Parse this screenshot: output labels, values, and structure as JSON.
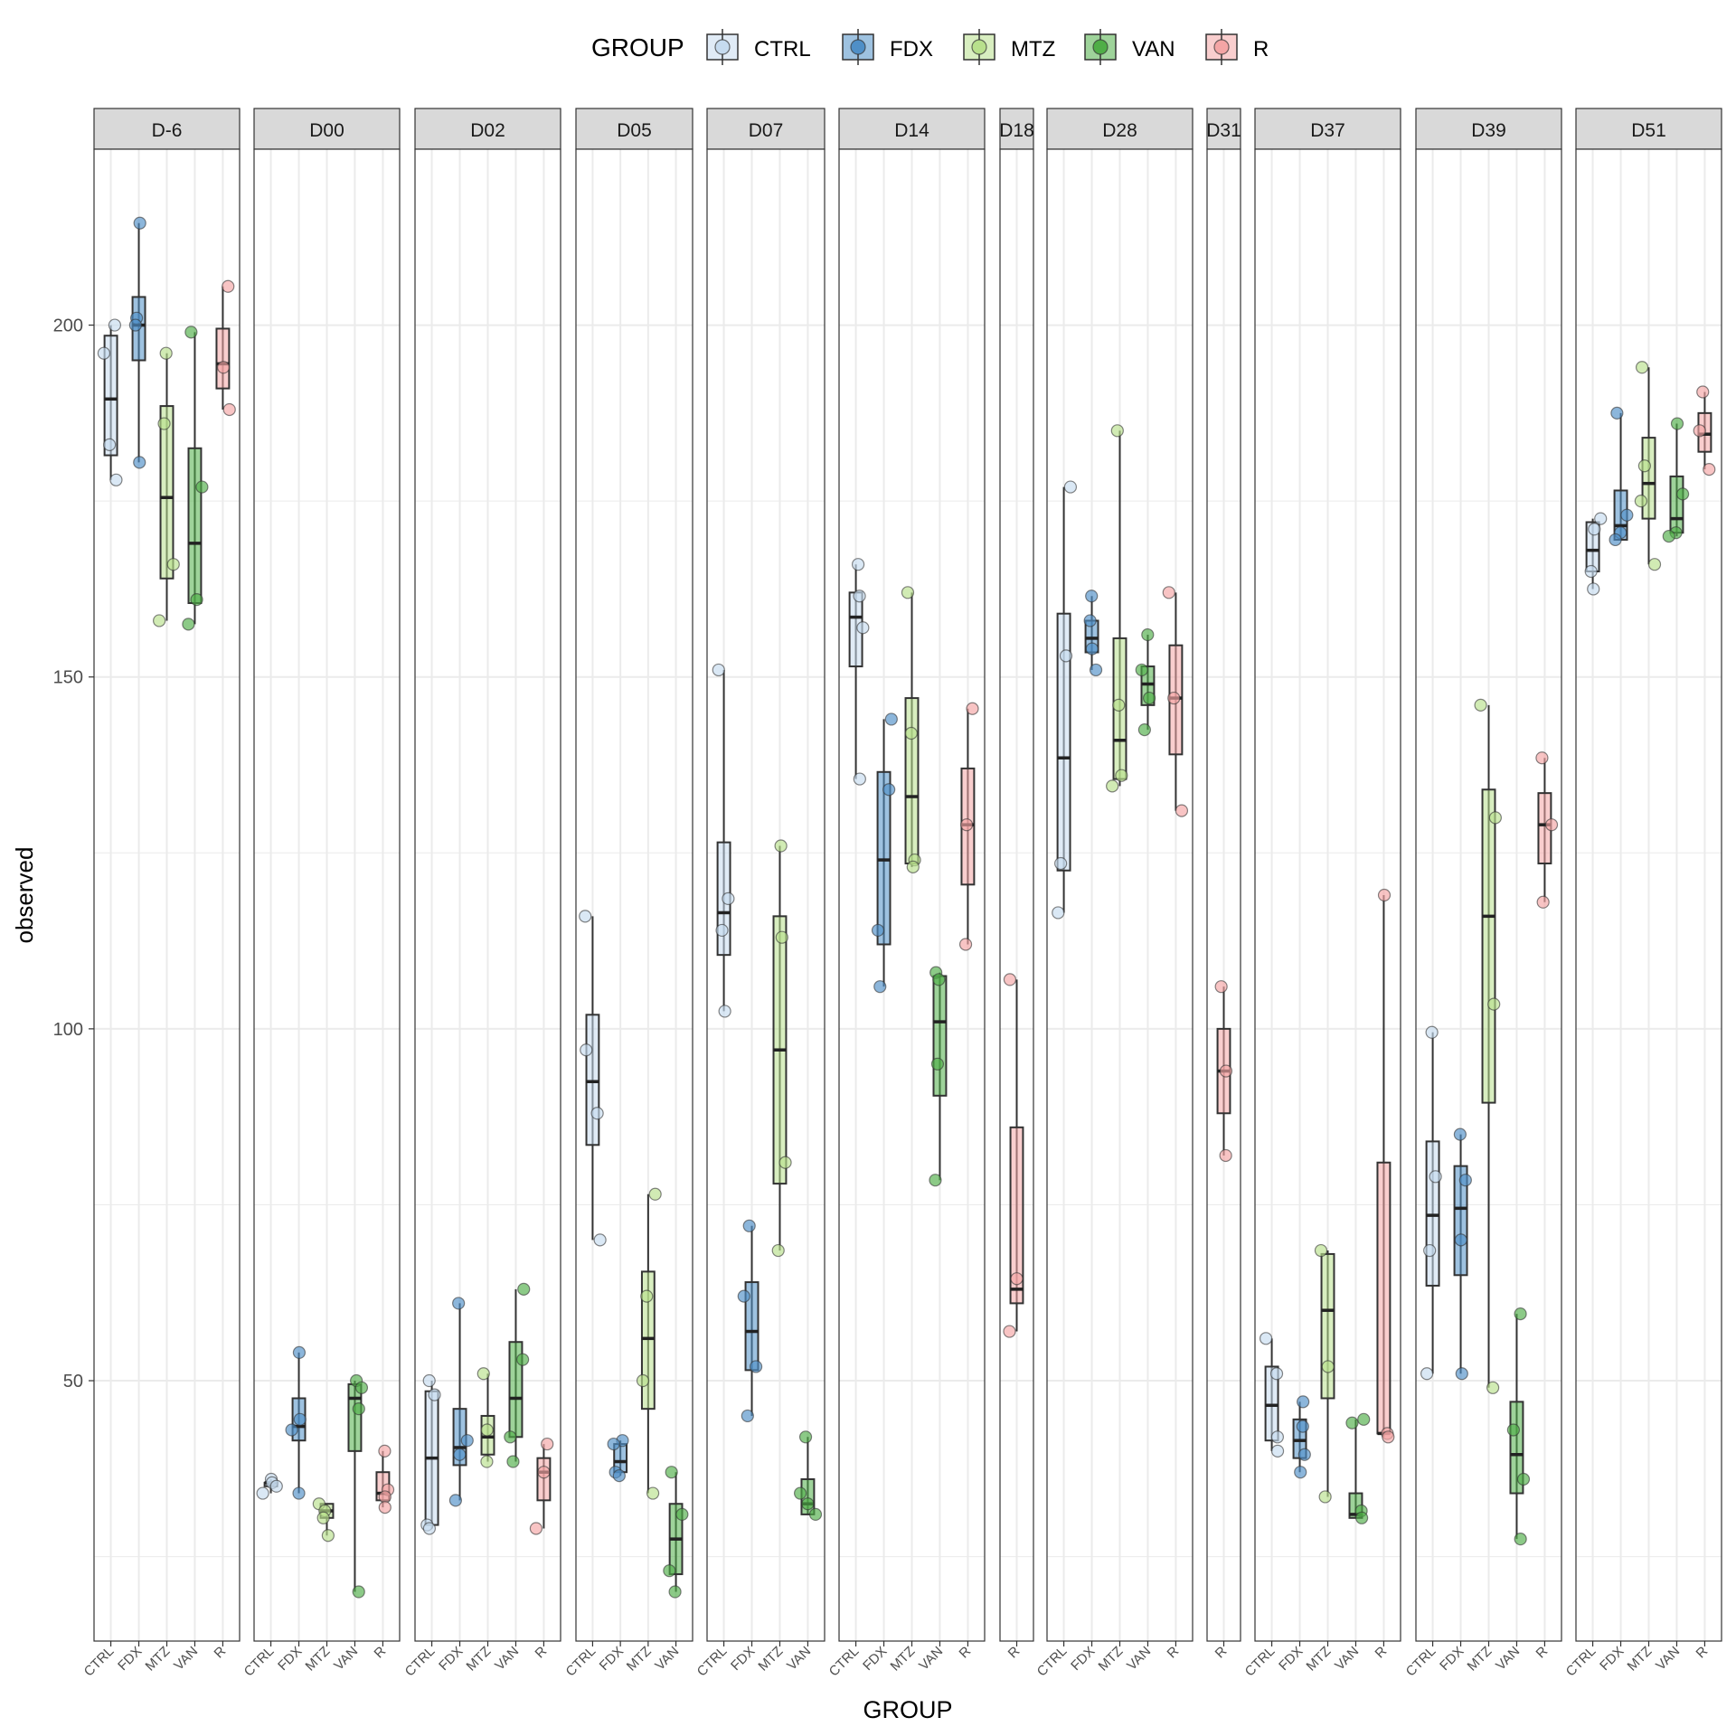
{
  "chart_data": {
    "type": "box",
    "legend": {
      "title": "GROUP",
      "position": "top",
      "items": [
        {
          "name": "CTRL",
          "color": "#c6dbef"
        },
        {
          "name": "FDX",
          "color": "#4f8fc7"
        },
        {
          "name": "MTZ",
          "color": "#b8e08c"
        },
        {
          "name": "VAN",
          "color": "#4fae47"
        },
        {
          "name": "R",
          "color": "#f4a5a5"
        }
      ]
    },
    "xlabel": "GROUP",
    "ylabel": "observed",
    "ylim": [
      13,
      225
    ],
    "yticks": [
      50,
      100,
      150,
      200
    ],
    "grid": true,
    "facets": [
      {
        "label": "D-6",
        "groups": [
          {
            "name": "CTRL",
            "q1": 181.5,
            "median": 189.5,
            "q3": 198.5,
            "points": [
              200,
              196,
              183,
              178
            ]
          },
          {
            "name": "FDX",
            "q1": 195,
            "median": 200,
            "q3": 204,
            "points": [
              214.5,
              201,
              200,
              180.5
            ]
          },
          {
            "name": "MTZ",
            "q1": 164,
            "median": 175.5,
            "q3": 188.5,
            "points": [
              196,
              186,
              166,
              158
            ]
          },
          {
            "name": "VAN",
            "q1": 160.5,
            "median": 169,
            "q3": 182.5,
            "points": [
              199,
              177,
              161,
              157.5
            ]
          },
          {
            "name": "R",
            "q1": 191,
            "median": 194.5,
            "q3": 199.5,
            "points": [
              205.5,
              194,
              188
            ]
          }
        ]
      },
      {
        "label": "D00",
        "groups": [
          {
            "name": "CTRL",
            "q1": 35,
            "median": 35.5,
            "q3": 35.5,
            "points": [
              36,
              35.5,
              35,
              34
            ]
          },
          {
            "name": "FDX",
            "q1": 41.5,
            "median": 43.5,
            "q3": 47.5,
            "points": [
              54,
              44.5,
              43,
              34
            ]
          },
          {
            "name": "MTZ",
            "q1": 30.5,
            "median": 31.5,
            "q3": 32.5,
            "points": [
              32.5,
              31.5,
              30.5,
              28
            ]
          },
          {
            "name": "VAN",
            "q1": 40,
            "median": 47.5,
            "q3": 49.5,
            "points": [
              50,
              49,
              46,
              20
            ]
          },
          {
            "name": "R",
            "q1": 33,
            "median": 34,
            "q3": 37,
            "points": [
              40,
              34.5,
              33.5,
              32
            ]
          }
        ]
      },
      {
        "label": "D02",
        "groups": [
          {
            "name": "CTRL",
            "q1": 29.5,
            "median": 39,
            "q3": 48.5,
            "points": [
              50,
              48,
              29.5,
              29
            ]
          },
          {
            "name": "FDX",
            "q1": 38,
            "median": 40.5,
            "q3": 46,
            "points": [
              61,
              41.5,
              39.5,
              33
            ]
          },
          {
            "name": "MTZ",
            "q1": 39.5,
            "median": 42,
            "q3": 45,
            "points": [
              51,
              43,
              38.5
            ]
          },
          {
            "name": "VAN",
            "q1": 42,
            "median": 47.5,
            "q3": 55.5,
            "points": [
              63,
              53,
              42,
              38.5
            ]
          },
          {
            "name": "R",
            "q1": 33,
            "median": 37,
            "q3": 39,
            "points": [
              41,
              37,
              29
            ]
          }
        ]
      },
      {
        "label": "D05",
        "groups": [
          {
            "name": "CTRL",
            "q1": 83.5,
            "median": 92.5,
            "q3": 102,
            "points": [
              116,
              97,
              88,
              70
            ]
          },
          {
            "name": "FDX",
            "q1": 37,
            "median": 38.5,
            "q3": 41,
            "points": [
              41.5,
              41,
              37,
              36.5
            ]
          },
          {
            "name": "MTZ",
            "q1": 46,
            "median": 56,
            "q3": 65.5,
            "points": [
              76.5,
              62,
              50,
              34
            ]
          },
          {
            "name": "VAN",
            "q1": 22.5,
            "median": 27.5,
            "q3": 32.5,
            "points": [
              37,
              31,
              23,
              20
            ]
          }
        ]
      },
      {
        "label": "D07",
        "groups": [
          {
            "name": "CTRL",
            "q1": 110.5,
            "median": 116.5,
            "q3": 126.5,
            "points": [
              151,
              118.5,
              114,
              102.5
            ]
          },
          {
            "name": "FDX",
            "q1": 51.5,
            "median": 57,
            "q3": 64,
            "points": [
              72,
              62,
              52,
              45
            ]
          },
          {
            "name": "MTZ",
            "q1": 78,
            "median": 97,
            "q3": 116,
            "points": [
              126,
              113,
              81,
              68.5
            ]
          },
          {
            "name": "VAN",
            "q1": 31,
            "median": 32.5,
            "q3": 36,
            "points": [
              42,
              34,
              32.5,
              31
            ]
          }
        ]
      },
      {
        "label": "D14",
        "groups": [
          {
            "name": "CTRL",
            "q1": 151.5,
            "median": 158.5,
            "q3": 162,
            "points": [
              166,
              161.5,
              157,
              135.5
            ]
          },
          {
            "name": "FDX",
            "q1": 112,
            "median": 124,
            "q3": 136.5,
            "points": [
              144,
              134,
              114,
              106
            ]
          },
          {
            "name": "MTZ",
            "q1": 123.5,
            "median": 133,
            "q3": 147,
            "points": [
              162,
              142,
              124,
              123
            ]
          },
          {
            "name": "VAN",
            "q1": 90.5,
            "median": 101,
            "q3": 107.5,
            "points": [
              108,
              107,
              95,
              78.5
            ]
          },
          {
            "name": "R",
            "q1": 120.5,
            "median": 129,
            "q3": 137,
            "points": [
              145.5,
              129,
              112
            ]
          }
        ]
      },
      {
        "label": "D18",
        "groups": [
          {
            "name": "R",
            "q1": 61,
            "median": 63,
            "q3": 86,
            "points": [
              107,
              64.5,
              57
            ]
          }
        ]
      },
      {
        "label": "D28",
        "groups": [
          {
            "name": "CTRL",
            "q1": 122.5,
            "median": 138.5,
            "q3": 159,
            "points": [
              177,
              153,
              123.5,
              116.5
            ]
          },
          {
            "name": "FDX",
            "q1": 153.5,
            "median": 155.5,
            "q3": 158,
            "points": [
              161.5,
              158,
              154,
              151
            ]
          },
          {
            "name": "MTZ",
            "q1": 135.5,
            "median": 141,
            "q3": 155.5,
            "points": [
              185,
              146,
              136,
              134.5
            ]
          },
          {
            "name": "VAN",
            "q1": 146,
            "median": 149,
            "q3": 151.5,
            "points": [
              156,
              151,
              147,
              142.5
            ]
          },
          {
            "name": "R",
            "q1": 139,
            "median": 147,
            "q3": 154.5,
            "points": [
              162,
              147,
              131
            ]
          }
        ]
      },
      {
        "label": "D31",
        "groups": [
          {
            "name": "R",
            "q1": 88,
            "median": 94,
            "q3": 100,
            "points": [
              106,
              94,
              82
            ]
          }
        ]
      },
      {
        "label": "D37",
        "groups": [
          {
            "name": "CTRL",
            "q1": 41.5,
            "median": 46.5,
            "q3": 52,
            "points": [
              56,
              51,
              42,
              40
            ]
          },
          {
            "name": "FDX",
            "q1": 39,
            "median": 41.5,
            "q3": 44.5,
            "points": [
              47,
              43.5,
              39.5,
              37
            ]
          },
          {
            "name": "MTZ",
            "q1": 47.5,
            "median": 60,
            "q3": 68,
            "points": [
              68.5,
              52,
              33.5
            ]
          },
          {
            "name": "VAN",
            "q1": 30.5,
            "median": 31,
            "q3": 34,
            "points": [
              44.5,
              44,
              31.5,
              30.5
            ]
          },
          {
            "name": "R",
            "q1": 42.5,
            "median": 42.5,
            "q3": 81,
            "points": [
              119,
              42.5,
              42
            ]
          }
        ]
      },
      {
        "label": "D39",
        "groups": [
          {
            "name": "CTRL",
            "q1": 63.5,
            "median": 73.5,
            "q3": 84,
            "points": [
              99.5,
              79,
              68.5,
              51
            ]
          },
          {
            "name": "FDX",
            "q1": 65,
            "median": 74.5,
            "q3": 80.5,
            "points": [
              85,
              78.5,
              70,
              51
            ]
          },
          {
            "name": "MTZ",
            "q1": 89.5,
            "median": 116,
            "q3": 134,
            "points": [
              146,
              130,
              103.5,
              49
            ]
          },
          {
            "name": "VAN",
            "q1": 34,
            "median": 39.5,
            "q3": 47,
            "points": [
              59.5,
              43,
              36,
              27.5
            ]
          },
          {
            "name": "R",
            "q1": 123.5,
            "median": 129,
            "q3": 133.5,
            "points": [
              138.5,
              129,
              118
            ]
          }
        ]
      },
      {
        "label": "D51",
        "groups": [
          {
            "name": "CTRL",
            "q1": 165,
            "median": 168,
            "q3": 172,
            "points": [
              172.5,
              171,
              165,
              162.5
            ]
          },
          {
            "name": "FDX",
            "q1": 169.5,
            "median": 171.5,
            "q3": 176.5,
            "points": [
              187.5,
              173,
              170.5,
              169.5
            ]
          },
          {
            "name": "MTZ",
            "q1": 172.5,
            "median": 177.5,
            "q3": 184,
            "points": [
              194,
              180,
              175,
              166
            ]
          },
          {
            "name": "VAN",
            "q1": 170.5,
            "median": 172.5,
            "q3": 178.5,
            "points": [
              186,
              176,
              170.5,
              170
            ]
          },
          {
            "name": "R",
            "q1": 182,
            "median": 184.5,
            "q3": 187.5,
            "points": [
              190.5,
              185,
              179.5
            ]
          }
        ]
      }
    ]
  }
}
